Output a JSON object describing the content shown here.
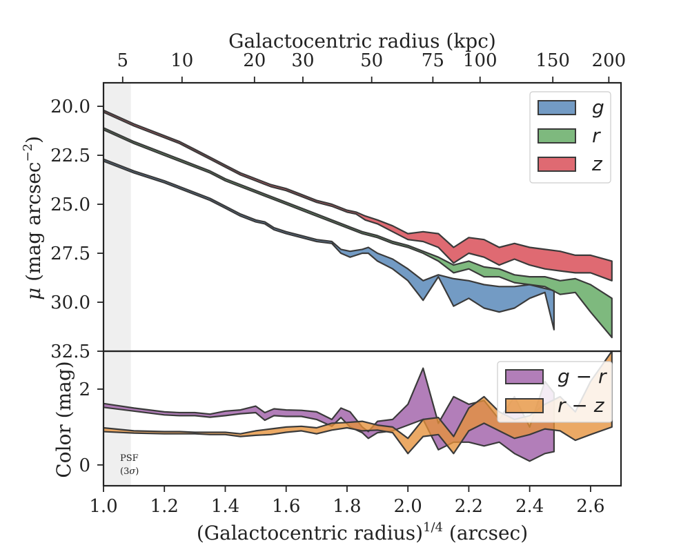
{
  "chart_data": {
    "type": "area",
    "top_axis": {
      "label": "Galactocentric radius (kpc)",
      "ticks": [
        5,
        10,
        20,
        30,
        50,
        75,
        100,
        150,
        200
      ],
      "tick_positions_x14": [
        1.063,
        1.258,
        1.496,
        1.655,
        1.881,
        2.082,
        2.237,
        2.476,
        2.66
      ],
      "tick_labels": [
        "5",
        "10",
        "20",
        "30",
        "50",
        "75",
        "100",
        "150",
        "200"
      ]
    },
    "panels": [
      {
        "name": "surface-brightness",
        "ylabel": "μ (mag arcsec⁻²)",
        "ylabel_main": "μ (mag arcsec",
        "ylabel_sup": "−2",
        "ylabel_close": ")",
        "ylim": [
          32.5,
          18.8
        ],
        "inverted": true,
        "yticks": [
          20.0,
          22.5,
          25.0,
          27.5,
          30.0,
          32.5
        ],
        "ytick_labels": [
          "20.0",
          "22.5",
          "25.0",
          "27.5",
          "30.0",
          "32.5"
        ],
        "legend_position": "upper right",
        "series": [
          {
            "name": "g",
            "color": "#4c7fb4",
            "x": [
              1.0,
              1.1,
              1.2,
              1.25,
              1.3,
              1.35,
              1.4,
              1.45,
              1.5,
              1.53,
              1.56,
              1.6,
              1.65,
              1.7,
              1.75,
              1.78,
              1.81,
              1.85,
              1.87,
              1.9,
              1.95,
              2.0,
              2.05,
              2.1,
              2.15,
              2.2,
              2.25,
              2.3,
              2.35,
              2.4,
              2.45,
              2.48
            ],
            "lower": [
              22.7,
              23.3,
              23.8,
              24.1,
              24.4,
              24.7,
              25.1,
              25.5,
              25.8,
              25.9,
              26.2,
              26.4,
              26.6,
              26.8,
              26.9,
              27.3,
              27.4,
              27.3,
              27.2,
              27.5,
              27.8,
              28.3,
              28.9,
              28.6,
              28.8,
              28.9,
              29.1,
              29.2,
              29.2,
              29.1,
              29.3,
              29.4
            ],
            "upper": [
              22.8,
              23.4,
              23.9,
              24.2,
              24.5,
              24.8,
              25.2,
              25.6,
              25.9,
              26.0,
              26.3,
              26.5,
              26.7,
              26.9,
              27.0,
              27.5,
              27.7,
              27.5,
              27.5,
              27.9,
              28.3,
              28.9,
              29.9,
              28.7,
              30.2,
              29.8,
              30.3,
              30.5,
              30.3,
              29.8,
              29.5,
              31.4
            ]
          },
          {
            "name": "r",
            "color": "#5aa55a",
            "x": [
              1.0,
              1.1,
              1.2,
              1.25,
              1.3,
              1.35,
              1.4,
              1.45,
              1.5,
              1.55,
              1.6,
              1.65,
              1.7,
              1.75,
              1.8,
              1.85,
              1.9,
              1.95,
              2.0,
              2.05,
              2.1,
              2.15,
              2.2,
              2.25,
              2.3,
              2.35,
              2.4,
              2.45,
              2.5,
              2.55,
              2.6,
              2.67
            ],
            "lower": [
              21.1,
              21.8,
              22.4,
              22.7,
              23.0,
              23.3,
              23.7,
              24.0,
              24.3,
              24.6,
              24.9,
              25.2,
              25.5,
              25.8,
              26.1,
              26.4,
              26.6,
              26.9,
              27.1,
              27.4,
              27.7,
              28.1,
              27.9,
              28.2,
              28.3,
              28.6,
              28.7,
              28.7,
              28.9,
              28.8,
              29.1,
              29.8
            ],
            "upper": [
              21.2,
              21.9,
              22.5,
              22.8,
              23.1,
              23.4,
              23.8,
              24.1,
              24.4,
              24.7,
              25.0,
              25.3,
              25.6,
              25.9,
              26.2,
              26.5,
              26.7,
              27.0,
              27.2,
              27.5,
              27.9,
              28.5,
              28.3,
              28.7,
              28.7,
              29.0,
              29.1,
              29.2,
              29.6,
              29.5,
              30.5,
              31.8
            ]
          },
          {
            "name": "z",
            "color": "#d6404a",
            "x": [
              1.0,
              1.1,
              1.2,
              1.25,
              1.3,
              1.35,
              1.4,
              1.45,
              1.5,
              1.55,
              1.6,
              1.65,
              1.7,
              1.75,
              1.8,
              1.83,
              1.86,
              1.9,
              1.95,
              2.0,
              2.05,
              2.1,
              2.15,
              2.2,
              2.25,
              2.3,
              2.35,
              2.4,
              2.45,
              2.5,
              2.55,
              2.6,
              2.67
            ],
            "lower": [
              20.2,
              20.9,
              21.5,
              21.8,
              22.2,
              22.6,
              23.0,
              23.4,
              23.7,
              24.0,
              24.2,
              24.5,
              24.8,
              25.0,
              25.3,
              25.4,
              25.6,
              25.8,
              26.1,
              26.5,
              26.4,
              26.5,
              27.2,
              26.7,
              26.8,
              27.2,
              27.0,
              27.2,
              27.3,
              27.4,
              27.6,
              27.6,
              27.9
            ],
            "upper": [
              20.3,
              21.0,
              21.6,
              21.9,
              22.3,
              22.7,
              23.1,
              23.5,
              23.8,
              24.1,
              24.3,
              24.6,
              24.9,
              25.1,
              25.4,
              25.5,
              25.8,
              26.0,
              26.4,
              26.8,
              26.9,
              27.2,
              28.0,
              27.5,
              27.7,
              28.1,
              27.8,
              28.1,
              28.3,
              28.4,
              28.5,
              28.5,
              28.9
            ]
          }
        ]
      },
      {
        "name": "color",
        "ylabel": "Color (mag)",
        "ylim": [
          -0.55,
          3.0
        ],
        "inverted": false,
        "yticks": [
          0,
          2
        ],
        "ytick_labels": [
          "0",
          "2"
        ],
        "legend_position": "upper right",
        "series": [
          {
            "name": "g − r",
            "label_main": "g",
            "label_op": "−",
            "label_second": "r",
            "color": "#9c5aa5",
            "x": [
              1.0,
              1.1,
              1.2,
              1.25,
              1.3,
              1.35,
              1.4,
              1.45,
              1.5,
              1.53,
              1.56,
              1.6,
              1.65,
              1.7,
              1.75,
              1.78,
              1.81,
              1.85,
              1.87,
              1.9,
              1.95,
              2.0,
              2.05,
              2.1,
              2.15,
              2.2,
              2.25,
              2.3,
              2.35,
              2.4,
              2.45,
              2.48
            ],
            "lower": [
              1.52,
              1.42,
              1.32,
              1.3,
              1.3,
              1.26,
              1.3,
              1.35,
              1.38,
              1.18,
              1.3,
              1.28,
              1.28,
              1.2,
              1.02,
              1.25,
              1.0,
              0.85,
              0.7,
              0.85,
              0.9,
              1.05,
              1.2,
              0.4,
              0.6,
              0.6,
              0.5,
              0.6,
              0.3,
              0.1,
              0.3,
              0.35
            ],
            "upper": [
              1.62,
              1.5,
              1.4,
              1.38,
              1.38,
              1.34,
              1.42,
              1.45,
              1.55,
              1.38,
              1.48,
              1.45,
              1.44,
              1.4,
              1.2,
              1.5,
              1.4,
              1.0,
              0.88,
              1.15,
              1.2,
              1.6,
              2.55,
              1.1,
              1.8,
              1.6,
              1.7,
              1.2,
              1.8,
              1.0,
              2.2,
              1.9
            ]
          },
          {
            "name": "r − z",
            "label_main": "r",
            "label_op": "−",
            "label_second": "z",
            "color": "#e6913a",
            "x": [
              1.0,
              1.1,
              1.2,
              1.25,
              1.3,
              1.35,
              1.4,
              1.45,
              1.5,
              1.55,
              1.6,
              1.65,
              1.7,
              1.75,
              1.8,
              1.85,
              1.9,
              1.95,
              2.0,
              2.05,
              2.1,
              2.15,
              2.2,
              2.25,
              2.3,
              2.35,
              2.4,
              2.45,
              2.5,
              2.55,
              2.6,
              2.67
            ],
            "lower": [
              0.88,
              0.84,
              0.82,
              0.82,
              0.82,
              0.8,
              0.8,
              0.75,
              0.78,
              0.8,
              0.86,
              0.9,
              0.82,
              0.92,
              0.98,
              0.9,
              0.92,
              0.85,
              0.3,
              0.75,
              0.8,
              0.3,
              0.9,
              1.1,
              0.9,
              0.7,
              0.8,
              0.95,
              0.9,
              0.65,
              0.8,
              1.0
            ],
            "upper": [
              0.98,
              0.9,
              0.88,
              0.88,
              0.86,
              0.86,
              0.86,
              0.82,
              0.9,
              0.95,
              1.0,
              1.02,
              0.98,
              1.1,
              1.12,
              1.15,
              1.05,
              1.0,
              0.7,
              1.2,
              1.25,
              0.75,
              1.5,
              1.8,
              1.4,
              1.2,
              1.3,
              1.6,
              1.8,
              1.4,
              2.2,
              3.0
            ]
          }
        ]
      }
    ],
    "xlabel": "(Galactocentric radius)",
    "xlabel_sup": "1/4",
    "xlabel_units": " (arcsec)",
    "xlim": [
      1.0,
      2.7
    ],
    "xticks": [
      1.0,
      1.2,
      1.4,
      1.6,
      1.8,
      2.0,
      2.2,
      2.4,
      2.6
    ],
    "xtick_labels": [
      "1.0",
      "1.2",
      "1.4",
      "1.6",
      "1.8",
      "2.0",
      "2.2",
      "2.4",
      "2.6"
    ],
    "psf_region": {
      "x_range": [
        1.0,
        1.09
      ],
      "label_line1": "PSF",
      "label_line2_open": "(3",
      "label_line2_sigma": "σ",
      "label_line2_close": ")",
      "color": "#efefef"
    },
    "grid": false
  }
}
